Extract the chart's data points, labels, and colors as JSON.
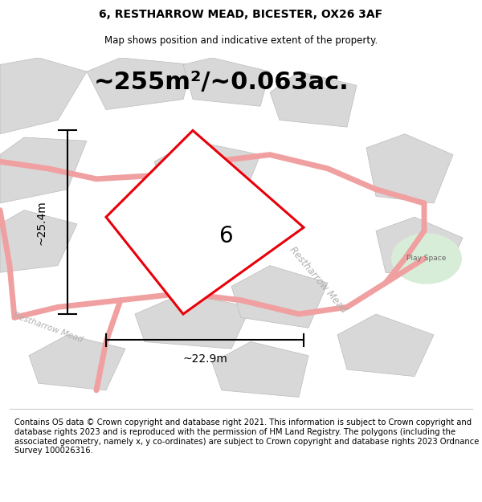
{
  "title_line1": "6, RESTHARROW MEAD, BICESTER, OX26 3AF",
  "title_line2": "Map shows position and indicative extent of the property.",
  "area_text": "~255m²/~0.063ac.",
  "width_label": "~22.9m",
  "height_label": "~25.4m",
  "plot_number": "6",
  "road_label_diag": "Restharrow Mead",
  "road_label_left": "Restharrow Mead",
  "play_space_label": "Play Space",
  "footer_text": "Contains OS data © Crown copyright and database right 2021. This information is subject to Crown copyright and database rights 2023 and is reproduced with the permission of HM Land Registry. The polygons (including the associated geometry, namely x, y co-ordinates) are subject to Crown copyright and database rights 2023 Ordnance Survey 100026316.",
  "plot_color": "#e8000a",
  "road_color": "#f0a0a0",
  "building_color": "#d8d8d8",
  "building_edge_color": "#bbbbbb",
  "play_space_color": "#d8edd8",
  "bg_color": "#eeeeee",
  "white_color": "#ffffff",
  "title_fontsize": 10,
  "subtitle_fontsize": 8.5,
  "area_fontsize": 22,
  "label_fontsize": 10,
  "number_fontsize": 20,
  "footer_fontsize": 7.2
}
